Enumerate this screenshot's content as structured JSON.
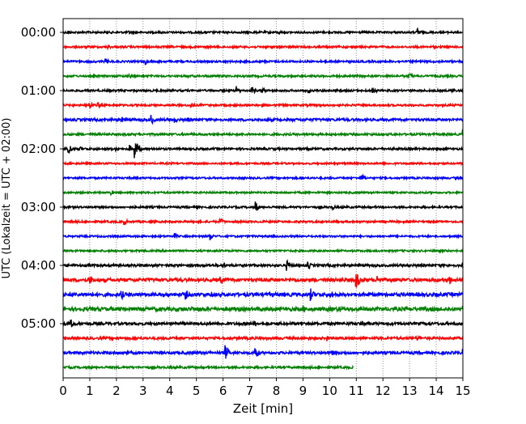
{
  "chart_data": {
    "type": "line",
    "subtype": "helicorder",
    "title": "",
    "xlabel": "Zeit  [min]",
    "ylabel": "UTC (Lokalzeit = UTC + 02:00)",
    "xlim": [
      0,
      15
    ],
    "xticks": [
      "0",
      "1",
      "2",
      "3",
      "4",
      "5",
      "6",
      "7",
      "8",
      "9",
      "10",
      "11",
      "12",
      "13",
      "14",
      "15"
    ],
    "yticks": [
      "00:00",
      "01:00",
      "02:00",
      "03:00",
      "04:00",
      "05:00"
    ],
    "minutes_per_row": 15,
    "grid": "vertical dotted",
    "colors": [
      "#000000",
      "#ff0000",
      "#0000ff",
      "#008000"
    ],
    "rows": [
      {
        "start": "00:00",
        "noise": 1.2,
        "events": [
          [
            0.2,
            3
          ],
          [
            2.5,
            3
          ],
          [
            8.1,
            2.5
          ],
          [
            13.3,
            6
          ]
        ]
      },
      {
        "start": "00:15",
        "noise": 1.2,
        "events": [
          [
            1.7,
            3
          ],
          [
            13.9,
            2
          ]
        ]
      },
      {
        "start": "00:30",
        "noise": 1.2,
        "events": [
          [
            1.6,
            4
          ],
          [
            3.1,
            4
          ],
          [
            9.5,
            2
          ]
        ]
      },
      {
        "start": "00:45",
        "noise": 1.2,
        "events": [
          [
            2.5,
            3
          ],
          [
            13.0,
            4
          ]
        ]
      },
      {
        "start": "01:00",
        "noise": 1.2,
        "events": [
          [
            6.5,
            6
          ],
          [
            7.1,
            5
          ],
          [
            7.5,
            4
          ],
          [
            9.2,
            4
          ],
          [
            11.6,
            6
          ],
          [
            14.6,
            4
          ]
        ]
      },
      {
        "start": "01:15",
        "noise": 1.2,
        "events": [
          [
            1.0,
            6
          ],
          [
            1.3,
            4
          ],
          [
            4.8,
            4
          ]
        ]
      },
      {
        "start": "01:30",
        "noise": 1.6,
        "events": [
          [
            2.2,
            4
          ],
          [
            3.3,
            7
          ],
          [
            4.2,
            4
          ],
          [
            4.7,
            3
          ]
        ]
      },
      {
        "start": "01:45",
        "noise": 1.3,
        "events": [
          [
            15.0,
            8
          ]
        ]
      },
      {
        "start": "02:00",
        "noise": 1.3,
        "events": [
          [
            0.2,
            8
          ],
          [
            0.6,
            4
          ],
          [
            2.0,
            4
          ],
          [
            2.5,
            5
          ],
          [
            2.7,
            14
          ],
          [
            5.0,
            3
          ]
        ]
      },
      {
        "start": "02:15",
        "noise": 1.1,
        "events": []
      },
      {
        "start": "02:30",
        "noise": 1.1,
        "events": [
          [
            11.2,
            6
          ]
        ]
      },
      {
        "start": "02:45",
        "noise": 1.1,
        "events": [
          [
            1.8,
            3
          ]
        ]
      },
      {
        "start": "03:00",
        "noise": 1.2,
        "events": [
          [
            7.2,
            9
          ],
          [
            10.1,
            4
          ]
        ]
      },
      {
        "start": "03:15",
        "noise": 1.2,
        "events": [
          [
            2.3,
            5
          ],
          [
            5.9,
            5
          ]
        ]
      },
      {
        "start": "03:30",
        "noise": 1.1,
        "events": [
          [
            4.2,
            4
          ],
          [
            5.5,
            6
          ]
        ]
      },
      {
        "start": "03:45",
        "noise": 1.1,
        "events": [
          [
            2.0,
            2
          ]
        ]
      },
      {
        "start": "04:00",
        "noise": 1.5,
        "events": [
          [
            6.0,
            4
          ],
          [
            8.4,
            7
          ],
          [
            9.2,
            5
          ],
          [
            15.0,
            4
          ]
        ]
      },
      {
        "start": "04:15",
        "noise": 2.0,
        "events": [
          [
            1.0,
            6
          ],
          [
            5.9,
            7
          ],
          [
            11.0,
            12
          ],
          [
            11.8,
            7
          ],
          [
            14.5,
            6
          ]
        ]
      },
      {
        "start": "04:30",
        "noise": 2.2,
        "events": [
          [
            2.2,
            6
          ],
          [
            4.6,
            7
          ],
          [
            9.3,
            8
          ],
          [
            10.1,
            5
          ]
        ]
      },
      {
        "start": "04:45",
        "noise": 2.3,
        "events": [
          [
            4.8,
            4
          ],
          [
            9.0,
            5
          ],
          [
            15.0,
            6
          ]
        ]
      },
      {
        "start": "05:00",
        "noise": 1.7,
        "events": [
          [
            0.3,
            6
          ],
          [
            7.2,
            4
          ],
          [
            11.2,
            4
          ]
        ]
      },
      {
        "start": "05:15",
        "noise": 1.5,
        "events": [
          [
            9.9,
            4
          ],
          [
            13.3,
            4
          ]
        ]
      },
      {
        "start": "05:30",
        "noise": 1.6,
        "events": [
          [
            2.4,
            4
          ],
          [
            6.1,
            10
          ],
          [
            7.2,
            10
          ],
          [
            10.1,
            4
          ],
          [
            15.0,
            5
          ]
        ]
      },
      {
        "start": "05:45",
        "noise": 1.3,
        "events": [],
        "end": 10.9
      }
    ]
  }
}
